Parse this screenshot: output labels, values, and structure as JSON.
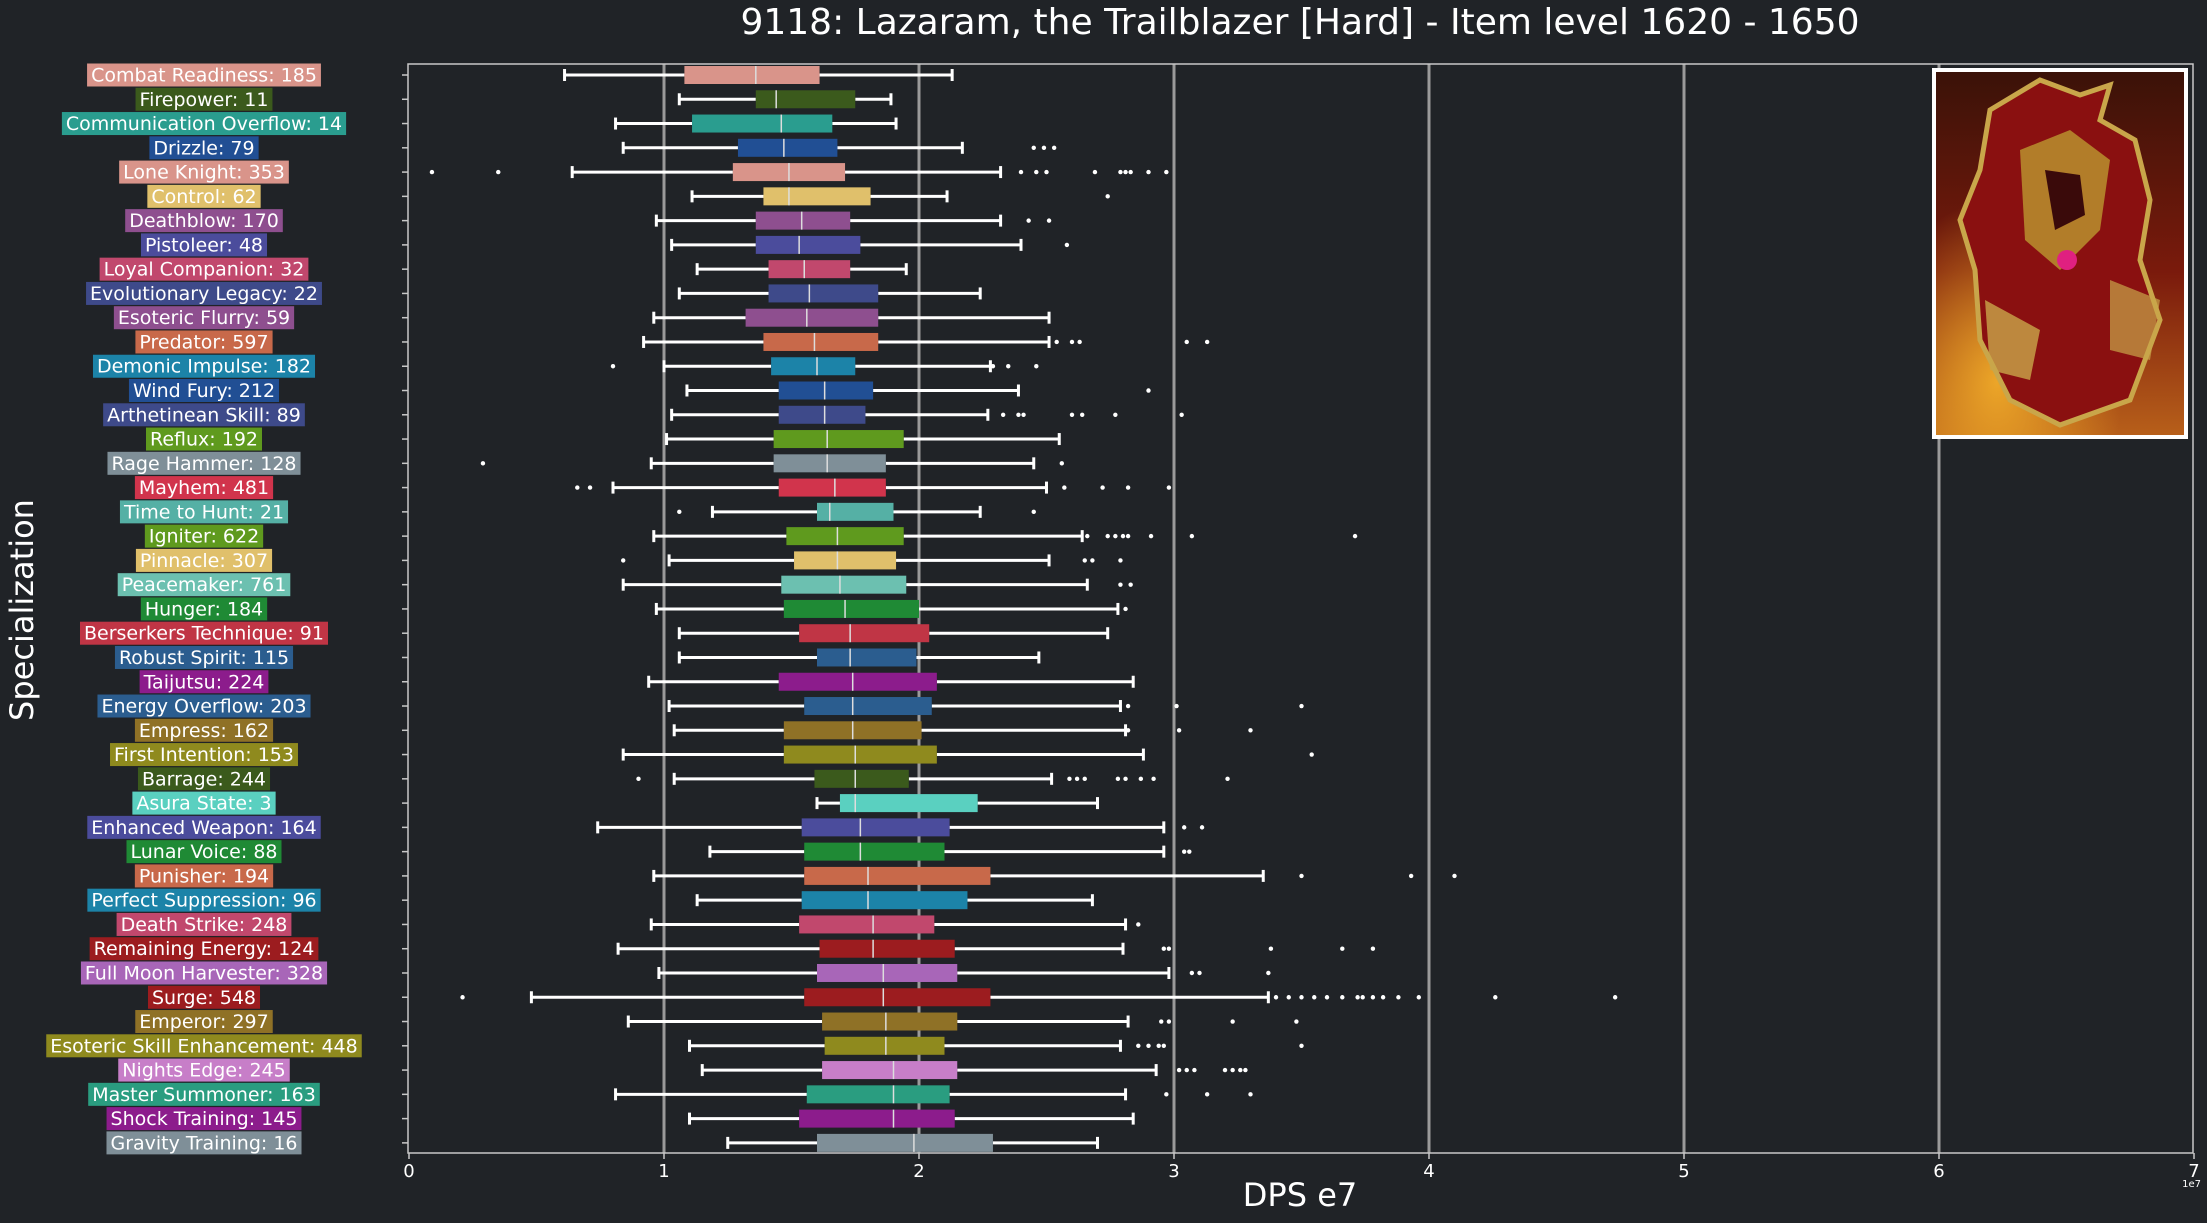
{
  "chart_data": {
    "type": "boxplot",
    "orientation": "horizontal",
    "title": "9118: Lazaram, the Trailblazer [Hard] - Item level 1620 - 1650",
    "xlabel": "DPS e7",
    "ylabel": "Specialization",
    "x_offset_text": "1e7",
    "xlim": [
      0,
      7
    ],
    "xticks": [
      0,
      1,
      2,
      3,
      4,
      5,
      6,
      7
    ],
    "vertical_gridlines": [
      1,
      2,
      3,
      4,
      5,
      6
    ],
    "units": "DPS ×1e7",
    "thumbnail": "boss portrait image",
    "colors": {
      "background": "#202327",
      "axes_edge": "#c8c8c8",
      "gridline": "#9a9a9a",
      "whisker": "#ffffff"
    },
    "series": [
      {
        "name": "Combat Readiness",
        "count": 185,
        "label": "Combat Readiness: 185",
        "color": "#d9948a",
        "whislo": 0.61,
        "q1": 1.08,
        "med": 1.36,
        "q3": 1.61,
        "whishi": 2.13,
        "outliers": []
      },
      {
        "name": "Firepower",
        "count": 11,
        "label": "Firepower: 11",
        "color": "#3b5a1c",
        "whislo": 1.06,
        "q1": 1.36,
        "med": 1.44,
        "q3": 1.75,
        "whishi": 1.89,
        "outliers": []
      },
      {
        "name": "Communication Overflow",
        "count": 14,
        "label": "Communication Overflow: 14",
        "color": "#2a9d8f",
        "whislo": 0.81,
        "q1": 1.11,
        "med": 1.46,
        "q3": 1.66,
        "whishi": 1.91,
        "outliers": []
      },
      {
        "name": "Drizzle",
        "count": 79,
        "label": "Drizzle: 79",
        "color": "#214f94",
        "whislo": 0.84,
        "q1": 1.29,
        "med": 1.47,
        "q3": 1.68,
        "whishi": 2.17,
        "outliers": [
          2.45,
          2.49,
          2.53
        ]
      },
      {
        "name": "Lone Knight",
        "count": 353,
        "label": "Lone Knight: 353",
        "color": "#d9948a",
        "whislo": 0.64,
        "q1": 1.27,
        "med": 1.49,
        "q3": 1.71,
        "whishi": 2.32,
        "outliers": [
          0.09,
          0.35,
          2.4,
          2.46,
          2.5,
          2.69,
          2.79,
          2.81,
          2.83,
          2.9,
          2.97
        ]
      },
      {
        "name": "Control",
        "count": 62,
        "label": "Control: 62",
        "color": "#e0c06b",
        "whislo": 1.11,
        "q1": 1.39,
        "med": 1.49,
        "q3": 1.81,
        "whishi": 2.11,
        "outliers": [
          2.74
        ]
      },
      {
        "name": "Deathblow",
        "count": 170,
        "label": "Deathblow: 170",
        "color": "#8e4f8f",
        "whislo": 0.97,
        "q1": 1.36,
        "med": 1.54,
        "q3": 1.73,
        "whishi": 2.32,
        "outliers": [
          2.43,
          2.51
        ]
      },
      {
        "name": "Pistoleer",
        "count": 48,
        "label": "Pistoleer: 48",
        "color": "#4b4c9c",
        "whislo": 1.03,
        "q1": 1.36,
        "med": 1.53,
        "q3": 1.77,
        "whishi": 2.4,
        "outliers": [
          2.58
        ]
      },
      {
        "name": "Loyal Companion",
        "count": 32,
        "label": "Loyal Companion: 32",
        "color": "#c1486d",
        "whislo": 1.13,
        "q1": 1.41,
        "med": 1.55,
        "q3": 1.73,
        "whishi": 1.95,
        "outliers": []
      },
      {
        "name": "Evolutionary Legacy",
        "count": 22,
        "label": "Evolutionary Legacy: 22",
        "color": "#3e4a8a",
        "whislo": 1.06,
        "q1": 1.41,
        "med": 1.57,
        "q3": 1.84,
        "whishi": 2.24,
        "outliers": []
      },
      {
        "name": "Esoteric Flurry",
        "count": 59,
        "label": "Esoteric Flurry: 59",
        "color": "#8e4f8f",
        "whislo": 0.96,
        "q1": 1.32,
        "med": 1.56,
        "q3": 1.84,
        "whishi": 2.51,
        "outliers": []
      },
      {
        "name": "Predator",
        "count": 597,
        "label": "Predator: 597",
        "color": "#c8694a",
        "whislo": 0.92,
        "q1": 1.39,
        "med": 1.59,
        "q3": 1.84,
        "whishi": 2.51,
        "outliers": [
          2.54,
          2.6,
          2.63,
          3.05,
          3.13
        ]
      },
      {
        "name": "Demonic Impulse",
        "count": 182,
        "label": "Demonic Impulse: 182",
        "color": "#1c83a8",
        "whislo": 1.0,
        "q1": 1.42,
        "med": 1.6,
        "q3": 1.75,
        "whishi": 2.28,
        "outliers": [
          0.8,
          2.29,
          2.35,
          2.46
        ]
      },
      {
        "name": "Wind Fury",
        "count": 212,
        "label": "Wind Fury: 212",
        "color": "#214f94",
        "whislo": 1.09,
        "q1": 1.45,
        "med": 1.63,
        "q3": 1.82,
        "whishi": 2.39,
        "outliers": [
          2.9
        ]
      },
      {
        "name": "Arthetinean Skill",
        "count": 89,
        "label": "Arthetinean Skill: 89",
        "color": "#3e4a8a",
        "whislo": 1.03,
        "q1": 1.45,
        "med": 1.63,
        "q3": 1.79,
        "whishi": 2.27,
        "outliers": [
          2.33,
          2.39,
          2.41,
          2.6,
          2.64,
          2.77,
          3.03
        ]
      },
      {
        "name": "Reflux",
        "count": 192,
        "label": "Reflux: 192",
        "color": "#5f9a1e",
        "whislo": 1.01,
        "q1": 1.43,
        "med": 1.64,
        "q3": 1.94,
        "whishi": 2.55,
        "outliers": []
      },
      {
        "name": "Rage Hammer",
        "count": 128,
        "label": "Rage Hammer: 128",
        "color": "#7f8f98",
        "whislo": 0.95,
        "q1": 1.43,
        "med": 1.64,
        "q3": 1.87,
        "whishi": 2.45,
        "outliers": [
          0.29,
          2.56
        ]
      },
      {
        "name": "Mayhem",
        "count": 481,
        "label": "Mayhem: 481",
        "color": "#d1344c",
        "whislo": 0.8,
        "q1": 1.45,
        "med": 1.67,
        "q3": 1.87,
        "whishi": 2.5,
        "outliers": [
          0.66,
          0.71,
          2.57,
          2.72,
          2.82,
          2.98
        ]
      },
      {
        "name": "Time to Hunt",
        "count": 21,
        "label": "Time to Hunt: 21",
        "color": "#55b0a5",
        "whislo": 1.19,
        "q1": 1.6,
        "med": 1.65,
        "q3": 1.9,
        "whishi": 2.24,
        "outliers": [
          1.06,
          2.45
        ]
      },
      {
        "name": "Igniter",
        "count": 622,
        "label": "Igniter: 622",
        "color": "#5f9a1e",
        "whislo": 0.96,
        "q1": 1.48,
        "med": 1.68,
        "q3": 1.94,
        "whishi": 2.64,
        "outliers": [
          2.66,
          2.74,
          2.77,
          2.8,
          2.82,
          2.91,
          3.07,
          3.71
        ]
      },
      {
        "name": "Pinnacle",
        "count": 307,
        "label": "Pinnacle: 307",
        "color": "#e0c06b",
        "whislo": 1.02,
        "q1": 1.51,
        "med": 1.68,
        "q3": 1.91,
        "whishi": 2.51,
        "outliers": [
          0.84,
          2.65,
          2.68,
          2.79
        ]
      },
      {
        "name": "Peacemaker",
        "count": 761,
        "label": "Peacemaker: 761",
        "color": "#6cc0b0",
        "whislo": 0.84,
        "q1": 1.46,
        "med": 1.69,
        "q3": 1.95,
        "whishi": 2.66,
        "outliers": [
          2.79,
          2.83
        ]
      },
      {
        "name": "Hunger",
        "count": 184,
        "label": "Hunger: 184",
        "color": "#1f8a35",
        "whislo": 0.97,
        "q1": 1.47,
        "med": 1.71,
        "q3": 2.0,
        "whishi": 2.78,
        "outliers": [
          2.81
        ]
      },
      {
        "name": "Berserkers Technique",
        "count": 91,
        "label": "Berserkers Technique: 91",
        "color": "#c03545",
        "whislo": 1.06,
        "q1": 1.53,
        "med": 1.73,
        "q3": 2.04,
        "whishi": 2.74,
        "outliers": []
      },
      {
        "name": "Robust Spirit",
        "count": 115,
        "label": "Robust Spirit: 115",
        "color": "#2b5d8f",
        "whislo": 1.06,
        "q1": 1.6,
        "med": 1.73,
        "q3": 1.99,
        "whishi": 2.47,
        "outliers": []
      },
      {
        "name": "Taijutsu",
        "count": 224,
        "label": "Taijutsu: 224",
        "color": "#8c1c8c",
        "whislo": 0.94,
        "q1": 1.45,
        "med": 1.74,
        "q3": 2.07,
        "whishi": 2.84,
        "outliers": []
      },
      {
        "name": "Energy Overflow",
        "count": 203,
        "label": "Energy Overflow: 203",
        "color": "#2b5d8f",
        "whislo": 1.02,
        "q1": 1.55,
        "med": 1.74,
        "q3": 2.05,
        "whishi": 2.79,
        "outliers": [
          2.82,
          3.01,
          3.5
        ]
      },
      {
        "name": "Empress",
        "count": 162,
        "label": "Empress: 162",
        "color": "#8f7126",
        "whislo": 1.04,
        "q1": 1.47,
        "med": 1.74,
        "q3": 2.01,
        "whishi": 2.81,
        "outliers": [
          2.82,
          3.02,
          3.3
        ]
      },
      {
        "name": "First Intention",
        "count": 153,
        "label": "First Intention: 153",
        "color": "#8f8a1e",
        "whislo": 0.84,
        "q1": 1.47,
        "med": 1.75,
        "q3": 2.07,
        "whishi": 2.88,
        "outliers": [
          3.54
        ]
      },
      {
        "name": "Barrage",
        "count": 244,
        "label": "Barrage: 244",
        "color": "#3b5a1c",
        "whislo": 1.04,
        "q1": 1.59,
        "med": 1.75,
        "q3": 1.96,
        "whishi": 2.52,
        "outliers": [
          0.9,
          2.59,
          2.62,
          2.65,
          2.78,
          2.81,
          2.87,
          2.92,
          3.21
        ]
      },
      {
        "name": "Asura State",
        "count": 3,
        "label": "Asura State: 3",
        "color": "#5ad0c0",
        "whislo": 1.6,
        "q1": 1.69,
        "med": 1.75,
        "q3": 2.23,
        "whishi": 2.7,
        "outliers": []
      },
      {
        "name": "Enhanced Weapon",
        "count": 164,
        "label": "Enhanced Weapon: 164",
        "color": "#4b4c9c",
        "whislo": 0.74,
        "q1": 1.54,
        "med": 1.77,
        "q3": 2.12,
        "whishi": 2.96,
        "outliers": [
          3.04,
          3.11
        ]
      },
      {
        "name": "Lunar Voice",
        "count": 88,
        "label": "Lunar Voice: 88",
        "color": "#1f8a35",
        "whislo": 1.18,
        "q1": 1.55,
        "med": 1.77,
        "q3": 2.1,
        "whishi": 2.96,
        "outliers": [
          3.04,
          3.06
        ]
      },
      {
        "name": "Punisher",
        "count": 194,
        "label": "Punisher: 194",
        "color": "#c8694a",
        "whislo": 0.96,
        "q1": 1.55,
        "med": 1.8,
        "q3": 2.28,
        "whishi": 3.35,
        "outliers": [
          3.5,
          3.93,
          4.1
        ]
      },
      {
        "name": "Perfect Suppression",
        "count": 96,
        "label": "Perfect Suppression: 96",
        "color": "#1c83a8",
        "whislo": 1.13,
        "q1": 1.54,
        "med": 1.8,
        "q3": 2.19,
        "whishi": 2.68,
        "outliers": []
      },
      {
        "name": "Death Strike",
        "count": 248,
        "label": "Death Strike: 248",
        "color": "#c1486d",
        "whislo": 0.95,
        "q1": 1.53,
        "med": 1.82,
        "q3": 2.06,
        "whishi": 2.81,
        "outliers": [
          2.86
        ]
      },
      {
        "name": "Remaining Energy",
        "count": 124,
        "label": "Remaining Energy: 124",
        "color": "#9c1c1f",
        "whislo": 0.82,
        "q1": 1.61,
        "med": 1.82,
        "q3": 2.14,
        "whishi": 2.8,
        "outliers": [
          2.96,
          2.98,
          3.38,
          3.66,
          3.78
        ]
      },
      {
        "name": "Full Moon Harvester",
        "count": 328,
        "label": "Full Moon Harvester: 328",
        "color": "#a866b8",
        "whislo": 0.98,
        "q1": 1.6,
        "med": 1.86,
        "q3": 2.15,
        "whishi": 2.98,
        "outliers": [
          3.07,
          3.1,
          3.37
        ]
      },
      {
        "name": "Surge",
        "count": 548,
        "label": "Surge: 548",
        "color": "#9c1c1f",
        "whislo": 0.48,
        "q1": 1.55,
        "med": 1.86,
        "q3": 2.28,
        "whishi": 3.37,
        "outliers": [
          0.21,
          3.4,
          3.45,
          3.5,
          3.55,
          3.6,
          3.66,
          3.72,
          3.74,
          3.78,
          3.82,
          3.88,
          3.96,
          4.26,
          4.73
        ]
      },
      {
        "name": "Emperor",
        "count": 297,
        "label": "Emperor: 297",
        "color": "#8f7126",
        "whislo": 0.86,
        "q1": 1.62,
        "med": 1.87,
        "q3": 2.15,
        "whishi": 2.82,
        "outliers": [
          2.95,
          2.98,
          3.23,
          3.48
        ]
      },
      {
        "name": "Esoteric Skill Enhancement",
        "count": 448,
        "label": "Esoteric Skill Enhancement: 448",
        "color": "#8f8a1e",
        "whislo": 1.1,
        "q1": 1.63,
        "med": 1.87,
        "q3": 2.1,
        "whishi": 2.79,
        "outliers": [
          2.86,
          2.9,
          2.94,
          2.96,
          3.5
        ]
      },
      {
        "name": "Nights Edge",
        "count": 245,
        "label": "Nights Edge: 245",
        "color": "#c77ec8",
        "whislo": 1.15,
        "q1": 1.62,
        "med": 1.9,
        "q3": 2.15,
        "whishi": 2.93,
        "outliers": [
          3.02,
          3.05,
          3.08,
          3.2,
          3.23,
          3.26,
          3.28
        ]
      },
      {
        "name": "Master Summoner",
        "count": 163,
        "label": "Master Summoner: 163",
        "color": "#2a9d80",
        "whislo": 0.81,
        "q1": 1.56,
        "med": 1.9,
        "q3": 2.12,
        "whishi": 2.81,
        "outliers": [
          2.97,
          3.13,
          3.3
        ]
      },
      {
        "name": "Shock Training",
        "count": 145,
        "label": "Shock Training: 145",
        "color": "#8c1c8c",
        "whislo": 1.1,
        "q1": 1.53,
        "med": 1.9,
        "q3": 2.14,
        "whishi": 2.84,
        "outliers": []
      },
      {
        "name": "Gravity Training",
        "count": 16,
        "label": "Gravity Training: 16",
        "color": "#7f8f98",
        "whislo": 1.25,
        "q1": 1.6,
        "med": 1.98,
        "q3": 2.29,
        "whishi": 2.7,
        "outliers": []
      }
    ]
  }
}
